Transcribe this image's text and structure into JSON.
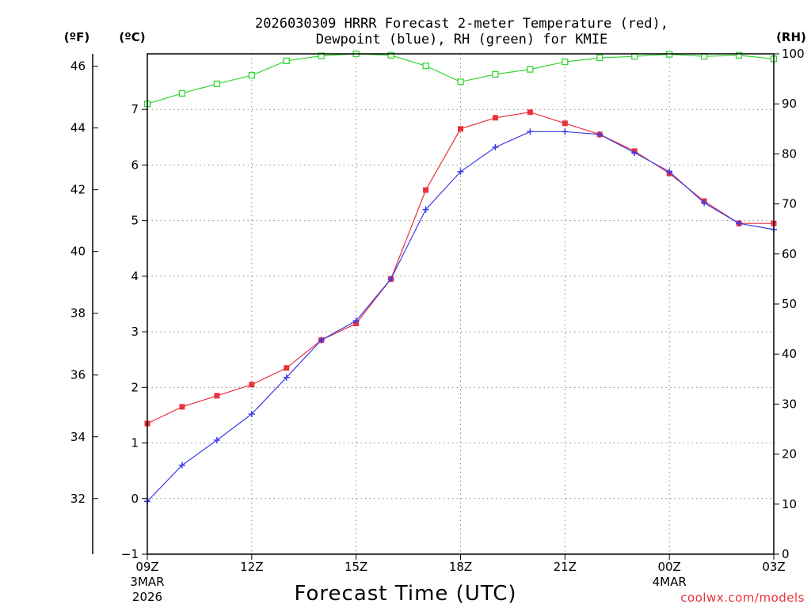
{
  "chart_data": {
    "type": "line",
    "title_line1": "2026030309 HRRR Forecast 2-meter Temperature (red),",
    "title_line2": "Dewpoint (blue), RH (green) for KMIE",
    "xlabel": "Forecast Time (UTC)",
    "credit": "coolwx.com/models",
    "units": {
      "f": "(ºF)",
      "c": "(ºC)",
      "rh": "(RH)"
    },
    "x_hours": [
      0,
      1,
      2,
      3,
      4,
      5,
      6,
      7,
      8,
      9,
      10,
      11,
      12,
      13,
      14,
      15,
      16,
      17,
      18
    ],
    "x_ticks": [
      {
        "h": 0,
        "label": "09Z",
        "sub1": "3MAR",
        "sub2": "2026"
      },
      {
        "h": 3,
        "label": "12Z"
      },
      {
        "h": 6,
        "label": "15Z"
      },
      {
        "h": 9,
        "label": "18Z"
      },
      {
        "h": 12,
        "label": "21Z"
      },
      {
        "h": 15,
        "label": "00Z",
        "sub1": "4MAR"
      },
      {
        "h": 18,
        "label": "03Z"
      }
    ],
    "c_axis": {
      "ylim": [
        -1,
        8
      ],
      "ticks": [
        -1,
        0,
        1,
        2,
        3,
        4,
        5,
        6,
        7
      ]
    },
    "f_axis": {
      "ylim": [
        30.2,
        46.4
      ],
      "ticks": [
        32,
        34,
        36,
        38,
        40,
        42,
        44,
        46
      ]
    },
    "rh_axis": {
      "ylim": [
        0,
        100
      ],
      "ticks": [
        0,
        10,
        20,
        30,
        40,
        50,
        60,
        70,
        80,
        90,
        100
      ]
    },
    "series": [
      {
        "name": "Temperature",
        "units": "C",
        "color": "#e8333a",
        "marker": "square-filled",
        "values": [
          1.35,
          1.65,
          1.85,
          2.05,
          2.35,
          2.85,
          3.15,
          3.95,
          5.55,
          6.65,
          6.85,
          6.95,
          6.75,
          6.55,
          6.25,
          5.85,
          5.35,
          4.95,
          4.95
        ]
      },
      {
        "name": "Dewpoint",
        "units": "C",
        "color": "#3b3be8",
        "marker": "plus",
        "values": [
          -0.05,
          0.6,
          1.05,
          1.52,
          2.18,
          2.85,
          3.2,
          3.95,
          5.2,
          5.88,
          6.32,
          6.6,
          6.6,
          6.55,
          6.22,
          5.88,
          5.32,
          4.95,
          4.84
        ]
      },
      {
        "name": "RH",
        "units": "%",
        "color": "#33d633",
        "marker": "square-open",
        "values": [
          90,
          92.1,
          94,
          95.7,
          98.6,
          99.6,
          100,
          99.7,
          97.6,
          94.4,
          95.9,
          96.9,
          98.4,
          99.2,
          99.5,
          99.9,
          99.5,
          99.7,
          99
        ]
      }
    ]
  }
}
